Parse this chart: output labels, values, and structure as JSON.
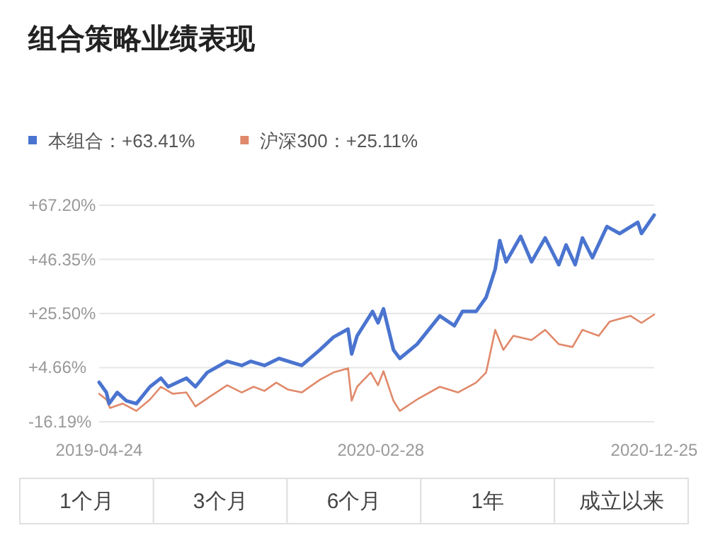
{
  "chart_data": {
    "type": "line",
    "title": "组合策略业绩表现",
    "series": [
      {
        "name": "本组合：+63.41%",
        "type": "line",
        "color": "#4a74cf",
        "x": [
          "2019-04-24",
          "2019-05-02",
          "2019-05-05",
          "2019-05-14",
          "2019-05-24",
          "2019-06-04",
          "2019-06-19",
          "2019-07-01",
          "2019-07-09",
          "2019-07-29",
          "2019-08-08",
          "2019-08-21",
          "2019-09-12",
          "2019-09-28",
          "2019-10-08",
          "2019-10-23",
          "2019-11-08",
          "2019-12-03",
          "2019-12-23",
          "2020-01-07",
          "2020-01-23",
          "2020-01-27",
          "2020-02-02",
          "2020-02-19",
          "2020-02-25",
          "2020-03-02",
          "2020-03-13",
          "2020-03-20",
          "2020-04-08",
          "2020-05-03",
          "2020-05-19",
          "2020-05-28",
          "2020-06-12",
          "2020-06-23",
          "2020-07-03",
          "2020-07-08",
          "2020-07-15",
          "2020-07-31",
          "2020-08-12",
          "2020-08-27",
          "2020-09-11",
          "2020-09-19",
          "2020-09-29",
          "2020-10-07",
          "2020-10-18",
          "2020-11-03",
          "2020-11-17",
          "2020-12-07",
          "2020-12-11",
          "2020-12-25"
        ],
        "values": [
          -1.0,
          -4.9,
          -9.2,
          -4.9,
          -8.1,
          -9.2,
          -2.7,
          0.6,
          -2.7,
          0.6,
          -2.7,
          2.8,
          7.1,
          5.5,
          7.1,
          5.5,
          8.2,
          5.5,
          11.5,
          16.4,
          19.5,
          9.9,
          16.9,
          26.3,
          21.9,
          27.3,
          11.5,
          8.2,
          13.7,
          24.6,
          20.8,
          26.3,
          26.3,
          31.7,
          42.6,
          53.6,
          45.4,
          55.2,
          45.4,
          54.6,
          44.3,
          51.9,
          44.3,
          54.6,
          47.0,
          59.0,
          56.3,
          60.6,
          56.3,
          63.4
        ]
      },
      {
        "name": "沪深300：+25.11%",
        "type": "line",
        "color": "#e0896a",
        "x": [
          "2019-04-24",
          "2019-05-02",
          "2019-05-06",
          "2019-05-20",
          "2019-06-04",
          "2019-06-19",
          "2019-07-01",
          "2019-07-14",
          "2019-07-29",
          "2019-08-08",
          "2019-08-24",
          "2019-09-12",
          "2019-09-28",
          "2019-10-11",
          "2019-10-23",
          "2019-11-05",
          "2019-11-18",
          "2019-12-03",
          "2019-12-23",
          "2020-01-07",
          "2020-01-23",
          "2020-01-27",
          "2020-02-02",
          "2020-02-17",
          "2020-02-25",
          "2020-03-02",
          "2020-03-13",
          "2020-03-20",
          "2020-04-08",
          "2020-05-03",
          "2020-05-23",
          "2020-06-12",
          "2020-06-23",
          "2020-07-03",
          "2020-07-12",
          "2020-07-23",
          "2020-08-12",
          "2020-08-27",
          "2020-09-11",
          "2020-09-26",
          "2020-10-07",
          "2020-10-25",
          "2020-11-06",
          "2020-11-29",
          "2020-12-11",
          "2020-12-25"
        ],
        "values": [
          -5.4,
          -7.6,
          -10.9,
          -9.2,
          -12.0,
          -7.6,
          -2.7,
          -5.4,
          -4.9,
          -10.3,
          -6.5,
          -2.1,
          -4.9,
          -2.7,
          -4.3,
          -1.1,
          -3.8,
          -4.9,
          0.0,
          2.8,
          4.4,
          -8.1,
          -2.7,
          2.8,
          -2.1,
          3.3,
          -8.1,
          -12.0,
          -7.6,
          -2.7,
          -4.9,
          -1.1,
          2.8,
          19.2,
          11.5,
          16.9,
          15.3,
          19.2,
          13.7,
          12.6,
          19.2,
          16.9,
          22.4,
          24.6,
          21.9,
          25.1
        ]
      }
    ],
    "xlim": [
      "2019-04-24",
      "2020-12-25"
    ],
    "xticks": [
      {
        "value": "2019-04-24",
        "label": "2019-04-24"
      },
      {
        "value": "2020-02-28",
        "label": "2020-02-28"
      },
      {
        "value": "2020-12-25",
        "label": "2020-12-25"
      }
    ],
    "ylim": [
      -16.19,
      67.2
    ],
    "yticks": [
      {
        "value": 67.2,
        "label": "+67.20%"
      },
      {
        "value": 46.35,
        "label": "+46.35%"
      },
      {
        "value": 25.5,
        "label": "+25.50%"
      },
      {
        "value": 4.66,
        "label": "+4.66%"
      },
      {
        "value": -16.19,
        "label": "-16.19%"
      }
    ],
    "grid": "y",
    "legend": "top left",
    "annotations": [
      "1个月",
      "3个月",
      "6个月",
      "1年",
      "成立以来"
    ]
  }
}
